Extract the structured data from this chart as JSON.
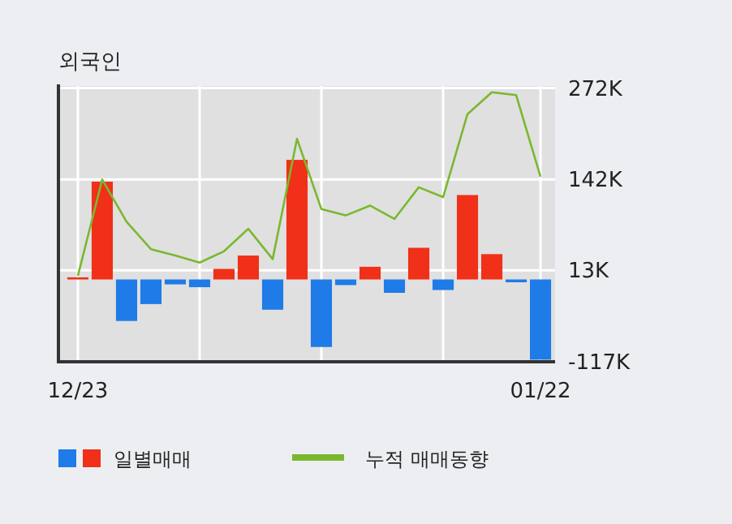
{
  "chart_data": {
    "type": "bar",
    "title": "외국인",
    "categories": [
      "12/23",
      null,
      null,
      null,
      null,
      null,
      null,
      null,
      null,
      null,
      null,
      null,
      null,
      null,
      null,
      null,
      null,
      null,
      null,
      "01/22"
    ],
    "series": [
      {
        "name": "일별매매",
        "colors": [
          "#f03018",
          "#f03018",
          "#1e7be8",
          "#1e7be8",
          "#1e7be8",
          "#1e7be8",
          "#f03018",
          "#f03018",
          "#1e7be8",
          "#f03018",
          "#1e7be8",
          "#1e7be8",
          "#f03018",
          "#1e7be8",
          "#f03018",
          "#1e7be8",
          "#f03018",
          "#f03018",
          "#1e7be8",
          "#1e7be8"
        ],
        "values": [
          3000,
          139000,
          -59000,
          -35000,
          -7000,
          -11000,
          15000,
          34000,
          -43000,
          170000,
          -96000,
          -8000,
          18000,
          -19000,
          45000,
          -15000,
          120000,
          36000,
          -4000,
          -114000
        ]
      },
      {
        "name": "누적 매매동향",
        "type": "line",
        "color": "#7ab830",
        "values": [
          5000,
          142000,
          82000,
          43000,
          34000,
          24000,
          40000,
          72000,
          29000,
          200000,
          100000,
          91000,
          105000,
          86000,
          131000,
          117000,
          235000,
          266000,
          262000,
          146000
        ]
      }
    ],
    "ylim": [
      -117000,
      275000
    ],
    "yticks": [
      {
        "value": 272000,
        "label": "272K"
      },
      {
        "value": 142000,
        "label": "142K"
      },
      {
        "value": 13000,
        "label": "13K"
      },
      {
        "value": -117000,
        "label": "-117K"
      }
    ],
    "grid": true,
    "legend": "bottom"
  }
}
